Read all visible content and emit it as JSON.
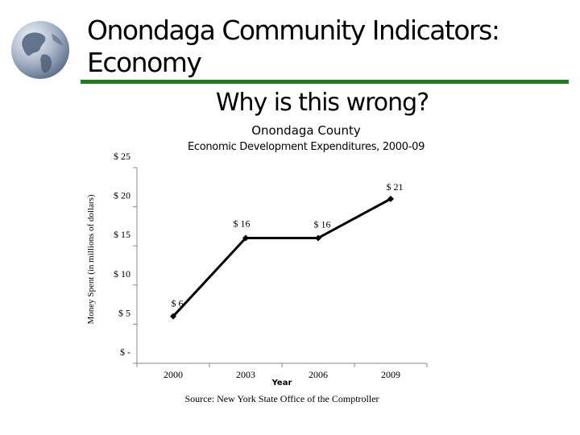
{
  "slide": {
    "title": "Onondaga Community Indicators: Economy",
    "question": "Why is this wrong?",
    "accent_color": "#1e7d1e",
    "logo_icon": "globe-icon"
  },
  "chart_data": {
    "type": "line",
    "title": "Onondaga County",
    "subtitle": "Economic Development Expenditures, 2000-09",
    "xlabel": "Year",
    "ylabel": "Money Spent (in millions of dollars)",
    "categories": [
      "2000",
      "2003",
      "2006",
      "2009"
    ],
    "values": [
      6,
      16,
      16,
      21
    ],
    "data_labels": [
      "$ 6",
      "$ 16",
      "$ 16",
      "$ 21"
    ],
    "y_ticks": [
      {
        "value": 0,
        "label": "$ -"
      },
      {
        "value": 5,
        "label": "$ 5"
      },
      {
        "value": 10,
        "label": "$ 10"
      },
      {
        "value": 15,
        "label": "$ 15"
      },
      {
        "value": 20,
        "label": "$ 20"
      },
      {
        "value": 25,
        "label": "$ 25"
      }
    ],
    "ylim": [
      0,
      25
    ],
    "grid": false,
    "legend": "none",
    "line_color": "#000000",
    "source": "Source: New York State Office of the Comptroller"
  }
}
